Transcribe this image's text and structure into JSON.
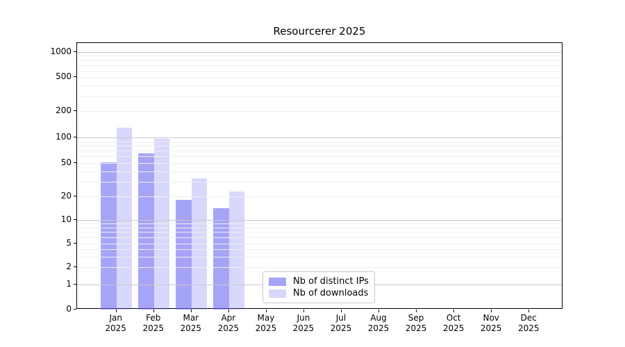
{
  "title": "Resourcerer 2025",
  "chart_data": {
    "type": "bar",
    "title": "Resourcerer 2025",
    "categories": [
      "Jan",
      "Feb",
      "Mar",
      "Apr",
      "May",
      "Jun",
      "Jul",
      "Aug",
      "Sep",
      "Oct",
      "Nov",
      "Dec"
    ],
    "x_year_label": "2025",
    "series": [
      {
        "name": "Nb of distinct IPs",
        "color": "rgba(106,103,242,0.60)",
        "values": [
          51,
          65,
          18,
          14,
          0,
          0,
          0,
          0,
          0,
          0,
          0,
          0
        ]
      },
      {
        "name": "Nb of downloads",
        "color": "rgba(106,103,242,0.26)",
        "values": [
          130,
          97,
          33,
          23,
          0,
          0,
          0,
          0,
          0,
          0,
          0,
          0
        ]
      }
    ],
    "y_ticks": [
      0,
      1,
      2,
      5,
      10,
      20,
      50,
      100,
      200,
      500,
      1000
    ],
    "y_major_gridlines": [
      1,
      10,
      100,
      1000
    ],
    "y_minor_gridlines": [
      2,
      3,
      4,
      5,
      6,
      7,
      8,
      9,
      20,
      30,
      40,
      60,
      70,
      80,
      90,
      200,
      300,
      400,
      600,
      700,
      800,
      900
    ],
    "scale": "symlog",
    "ylim": [
      0,
      1300
    ],
    "grid": true,
    "legend_position": "lower-center",
    "accent_color": "#6a67f2",
    "background_color": "#ffffff"
  }
}
